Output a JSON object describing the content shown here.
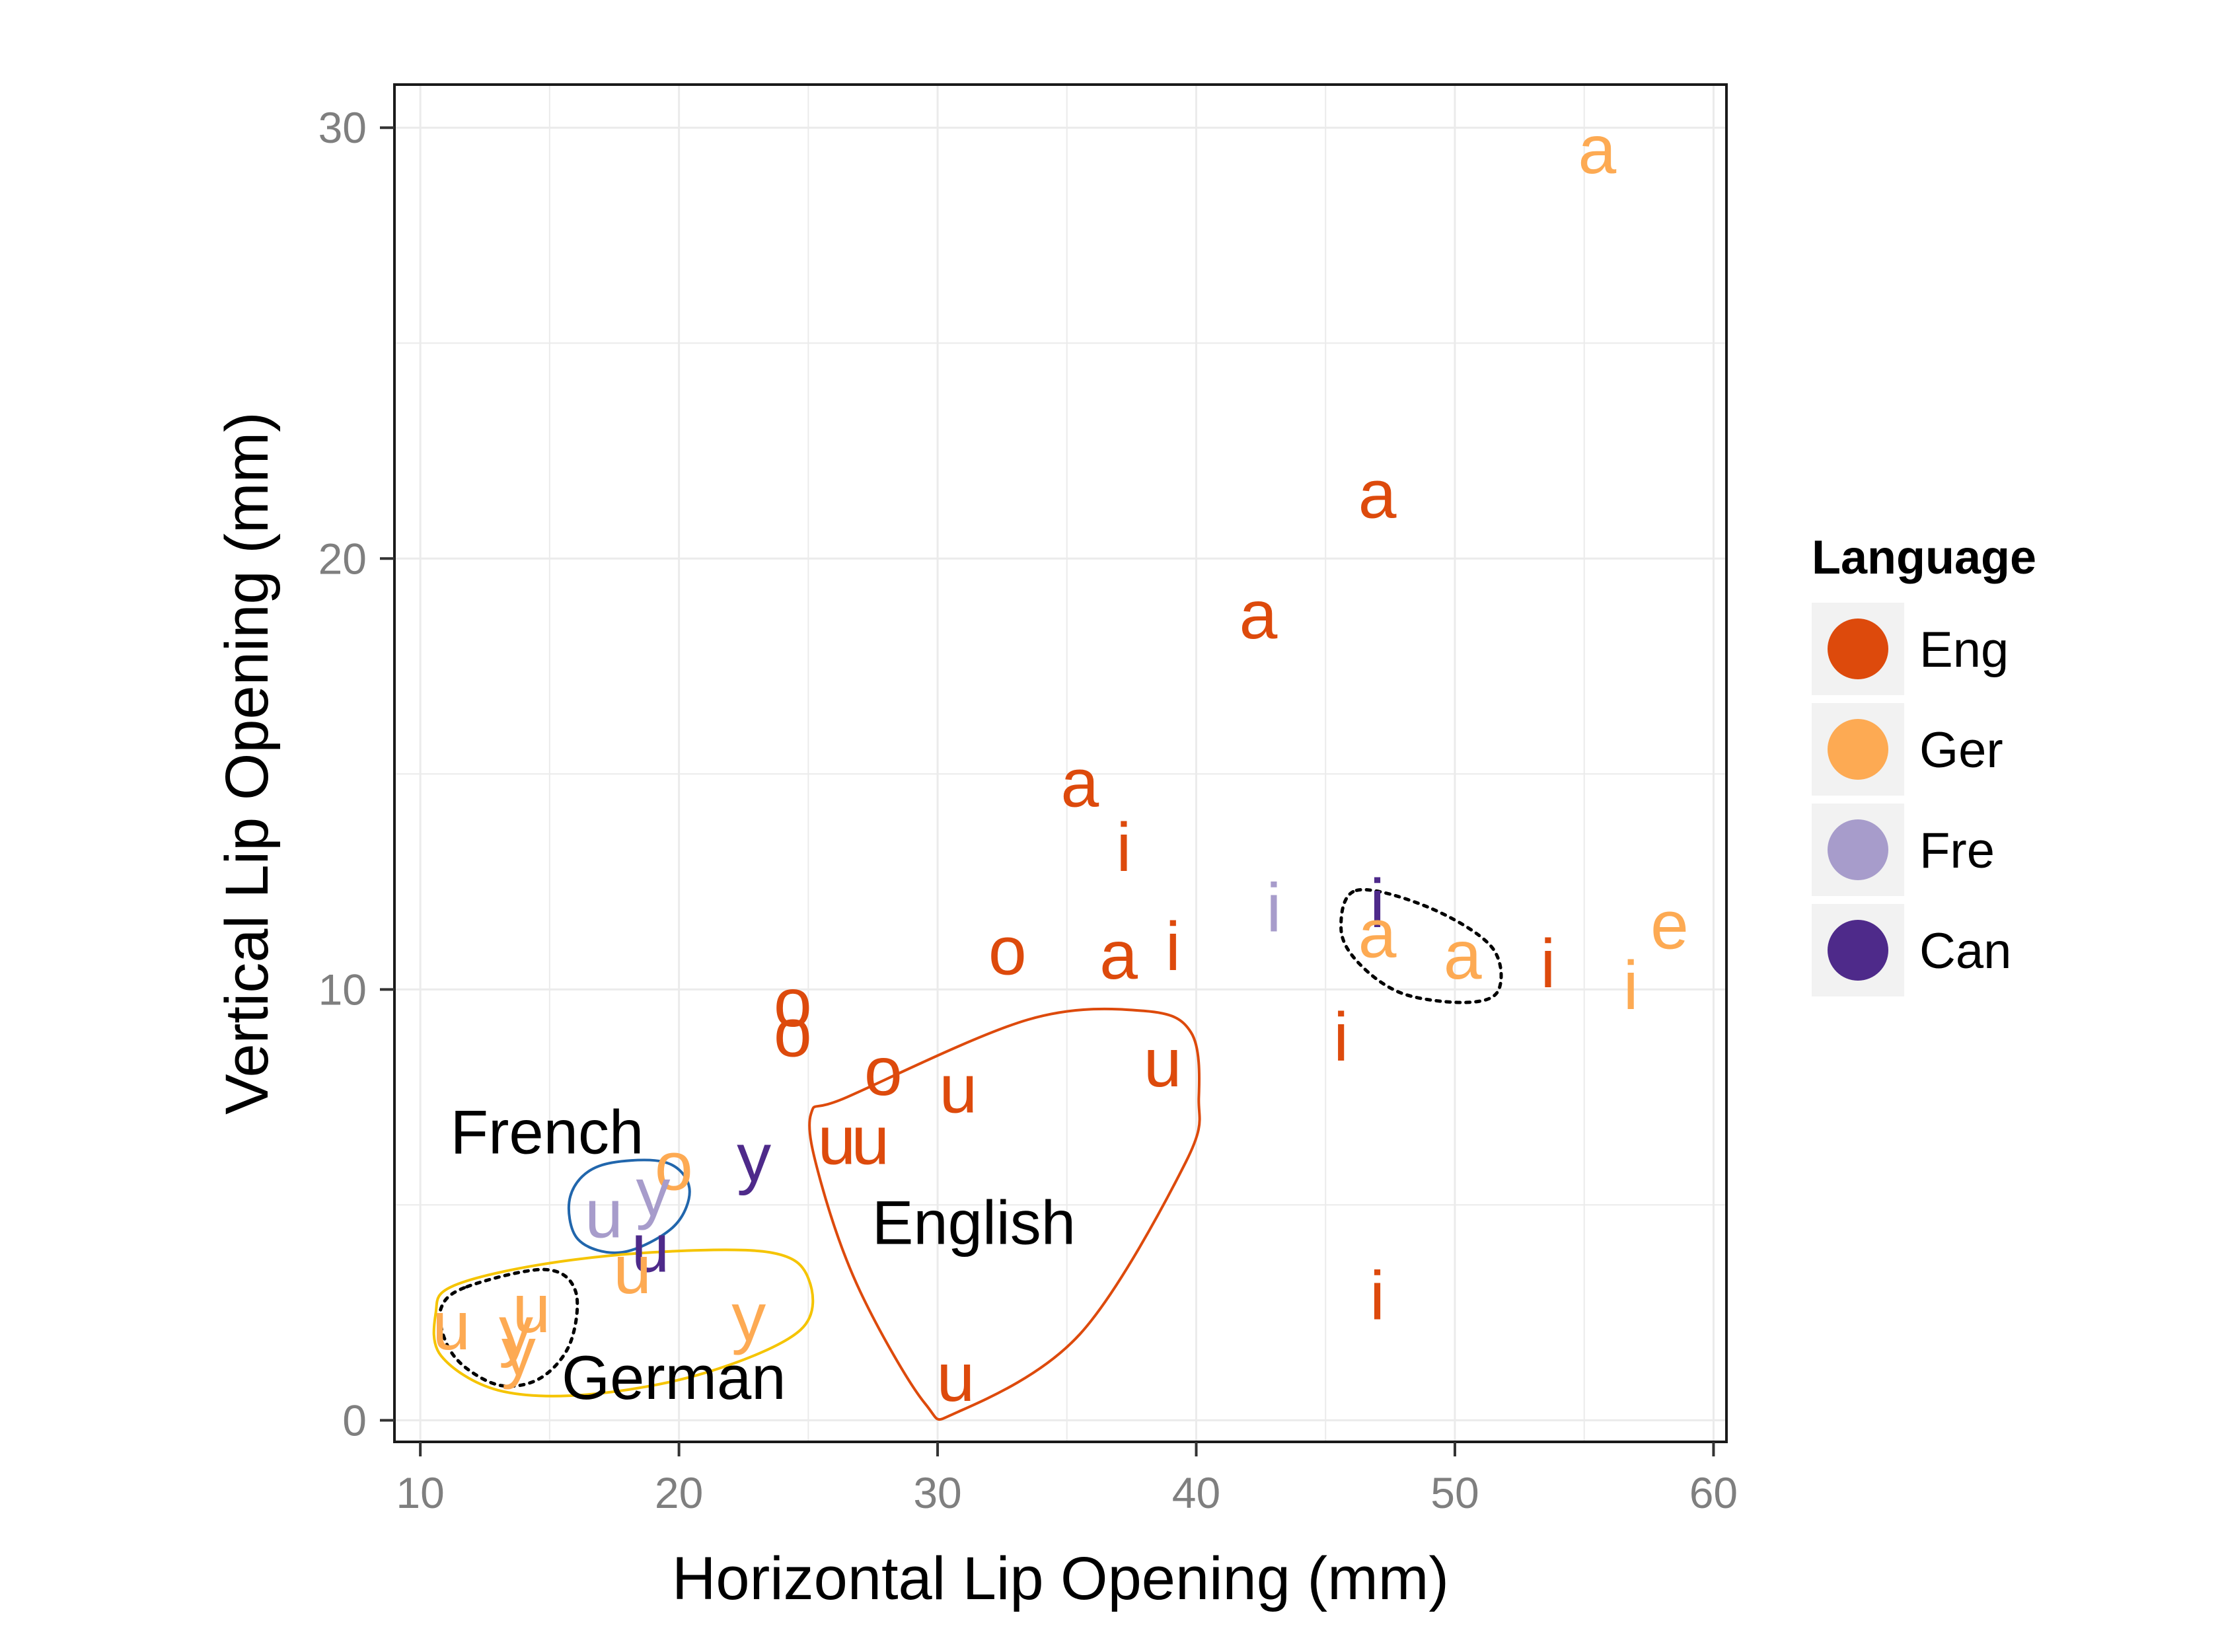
{
  "chart_data": {
    "type": "scatter",
    "xlabel": "Horizontal Lip Opening (mm)",
    "ylabel": "Vertical Lip Opening (mm)",
    "xlim": [
      9,
      60.5
    ],
    "ylim": [
      -0.5,
      31
    ],
    "x_ticks": [
      10,
      20,
      30,
      40,
      50,
      60
    ],
    "y_ticks": [
      0,
      10,
      20,
      30
    ],
    "grid": true,
    "legend": {
      "title": "Language",
      "placement": "right",
      "entries": [
        {
          "name": "Eng",
          "color": "#dd4a0c"
        },
        {
          "name": "Ger",
          "color": "#fdaa53"
        },
        {
          "name": "Fre",
          "color": "#a79ccb"
        },
        {
          "name": "Can",
          "color": "#4e2a8a"
        }
      ]
    },
    "points": [
      {
        "x": 55.5,
        "y": 29.5,
        "label": "a",
        "lang": "Ger"
      },
      {
        "x": 47.0,
        "y": 21.5,
        "label": "a",
        "lang": "Eng"
      },
      {
        "x": 42.4,
        "y": 18.7,
        "label": "a",
        "lang": "Eng"
      },
      {
        "x": 35.5,
        "y": 14.8,
        "label": "a",
        "lang": "Eng"
      },
      {
        "x": 37.2,
        "y": 13.3,
        "label": "i",
        "lang": "Eng"
      },
      {
        "x": 43.0,
        "y": 11.9,
        "label": "i",
        "lang": "Fre"
      },
      {
        "x": 47.0,
        "y": 12.0,
        "label": "i",
        "lang": "Can"
      },
      {
        "x": 47.0,
        "y": 11.3,
        "label": "a",
        "lang": "Ger"
      },
      {
        "x": 50.3,
        "y": 10.8,
        "label": "a",
        "lang": "Ger"
      },
      {
        "x": 53.6,
        "y": 10.6,
        "label": "i",
        "lang": "Eng"
      },
      {
        "x": 56.8,
        "y": 10.1,
        "label": "i",
        "lang": "Ger"
      },
      {
        "x": 58.3,
        "y": 11.5,
        "label": "e",
        "lang": "Ger"
      },
      {
        "x": 39.1,
        "y": 11.0,
        "label": "i",
        "lang": "Eng"
      },
      {
        "x": 37.0,
        "y": 10.8,
        "label": "a",
        "lang": "Eng"
      },
      {
        "x": 32.7,
        "y": 10.9,
        "label": "o",
        "lang": "Eng"
      },
      {
        "x": 45.6,
        "y": 8.9,
        "label": "i",
        "lang": "Eng"
      },
      {
        "x": 24.4,
        "y": 9.7,
        "label": "o",
        "lang": "Eng"
      },
      {
        "x": 24.4,
        "y": 9.0,
        "label": "o",
        "lang": "Eng"
      },
      {
        "x": 38.7,
        "y": 8.3,
        "label": "u",
        "lang": "Eng"
      },
      {
        "x": 27.9,
        "y": 8.1,
        "label": "o",
        "lang": "Eng"
      },
      {
        "x": 30.8,
        "y": 7.7,
        "label": "u",
        "lang": "Eng"
      },
      {
        "x": 26.1,
        "y": 6.5,
        "label": "u",
        "lang": "Eng"
      },
      {
        "x": 27.4,
        "y": 6.5,
        "label": "u",
        "lang": "Eng"
      },
      {
        "x": 22.9,
        "y": 6.1,
        "label": "y",
        "lang": "Can"
      },
      {
        "x": 19.8,
        "y": 5.9,
        "label": "o",
        "lang": "Ger"
      },
      {
        "x": 19.0,
        "y": 5.3,
        "label": "y",
        "lang": "Fre"
      },
      {
        "x": 17.1,
        "y": 4.8,
        "label": "u",
        "lang": "Fre"
      },
      {
        "x": 18.9,
        "y": 4.0,
        "label": "u",
        "lang": "Can"
      },
      {
        "x": 18.2,
        "y": 3.5,
        "label": "u",
        "lang": "Ger"
      },
      {
        "x": 47.0,
        "y": 2.9,
        "label": "i",
        "lang": "Eng"
      },
      {
        "x": 30.7,
        "y": 1.0,
        "label": "u",
        "lang": "Eng"
      },
      {
        "x": 11.2,
        "y": 2.2,
        "label": "u",
        "lang": "Ger"
      },
      {
        "x": 13.7,
        "y": 2.1,
        "label": "y",
        "lang": "Ger"
      },
      {
        "x": 14.3,
        "y": 2.6,
        "label": "u",
        "lang": "Ger"
      },
      {
        "x": 13.8,
        "y": 1.6,
        "label": "y",
        "lang": "Ger"
      },
      {
        "x": 22.7,
        "y": 2.4,
        "label": "y",
        "lang": "Ger"
      }
    ],
    "annotations": [
      {
        "text": "French",
        "x": 14.9,
        "y": 6.7
      },
      {
        "text": "English",
        "x": 31.4,
        "y": 4.6
      },
      {
        "text": "German",
        "x": 19.8,
        "y": 1.0
      }
    ],
    "outlines": [
      {
        "group": "French",
        "style": "solid",
        "color": "#2166ac",
        "points": [
          [
            16.9,
            5.9
          ],
          [
            19.4,
            6.0
          ],
          [
            20.4,
            5.4
          ],
          [
            19.8,
            4.5
          ],
          [
            17.8,
            3.9
          ],
          [
            16.1,
            4.2
          ],
          [
            15.8,
            5.2
          ]
        ]
      },
      {
        "group": "English",
        "style": "solid",
        "color": "#dd4a0c",
        "points": [
          [
            26.5,
            7.5
          ],
          [
            33.5,
            9.3
          ],
          [
            38.0,
            9.5
          ],
          [
            39.8,
            9.0
          ],
          [
            40.1,
            7.5
          ],
          [
            39.6,
            6.0
          ],
          [
            35.5,
            2.0
          ],
          [
            30.8,
            0.2
          ],
          [
            29.5,
            0.4
          ],
          [
            27.0,
            3.0
          ],
          [
            25.5,
            5.5
          ],
          [
            25.1,
            7.1
          ]
        ]
      },
      {
        "group": "German",
        "style": "solid",
        "color": "#f5c400",
        "points": [
          [
            11.2,
            3.1
          ],
          [
            14.5,
            3.6
          ],
          [
            19.0,
            3.9
          ],
          [
            23.5,
            3.9
          ],
          [
            25.0,
            3.3
          ],
          [
            24.7,
            2.1
          ],
          [
            21.0,
            1.1
          ],
          [
            16.5,
            0.6
          ],
          [
            13.0,
            0.7
          ],
          [
            10.8,
            1.5
          ],
          [
            10.6,
            2.5
          ]
        ]
      },
      {
        "group": "German-core",
        "style": "dotted",
        "color": "#000000",
        "points": [
          [
            11.8,
            3.1
          ],
          [
            14.8,
            3.5
          ],
          [
            16.0,
            3.0
          ],
          [
            15.8,
            1.8
          ],
          [
            14.7,
            1.0
          ],
          [
            13.2,
            0.8
          ],
          [
            11.8,
            1.2
          ],
          [
            11.0,
            1.8
          ],
          [
            10.8,
            2.6
          ]
        ]
      },
      {
        "group": "low-vowel-cluster",
        "style": "dotted",
        "color": "#000000",
        "points": [
          [
            46.2,
            12.3
          ],
          [
            49.0,
            11.9
          ],
          [
            51.4,
            11.0
          ],
          [
            51.7,
            10.0
          ],
          [
            50.5,
            9.7
          ],
          [
            48.0,
            9.9
          ],
          [
            46.3,
            10.6
          ],
          [
            45.6,
            11.4
          ]
        ]
      }
    ]
  }
}
